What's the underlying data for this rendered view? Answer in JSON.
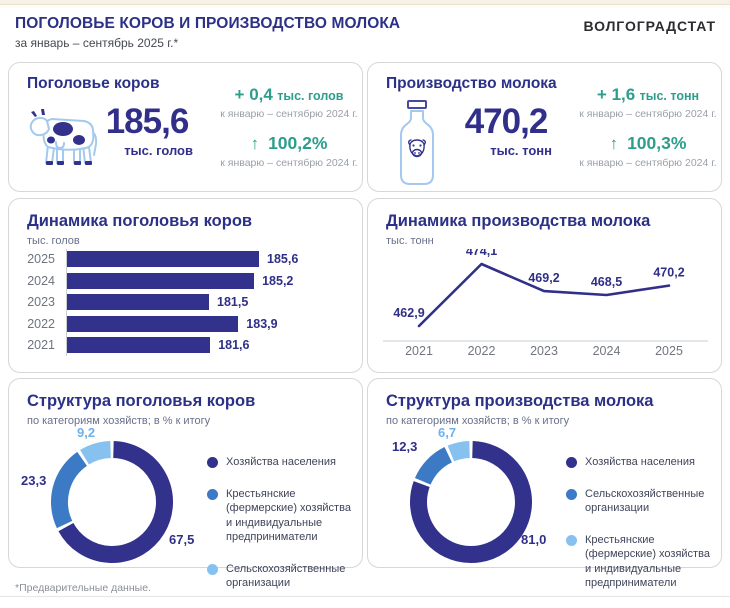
{
  "page": {
    "title": "ПОГОЛОВЬЕ КОРОВ И ПРОИЗВОДСТВО МОЛОКА",
    "subtitle": "за январь – сентябрь 2025 г.*",
    "brand": "ВОЛГОГРАДСТАТ",
    "footnote": "*Предварительные данные."
  },
  "colors": {
    "navy": "#32318c",
    "medium_blue": "#3c7ac5",
    "light_blue": "#86c1f0",
    "teal": "#2d9e8c",
    "caption_gray": "#9aa0a8"
  },
  "kpi_cards": [
    {
      "title": "Поголовье коров",
      "icon": "cow-icon",
      "value": "185,6",
      "unit": "тыс. голов",
      "delta_value": "+ 0,4",
      "delta_unit": "тыс. голов",
      "delta_caption": "к январю – сентябрю 2024 г.",
      "percent_arrow": "↑",
      "percent": "100,2%",
      "percent_caption": "к январю – сентябрю 2024 г."
    },
    {
      "title": "Производство молока",
      "icon": "milk-bottle-icon",
      "value": "470,2",
      "unit": "тыс. тонн",
      "delta_value": "+ 1,6",
      "delta_unit": "тыс. тонн",
      "delta_caption": "к январю – сентябрю 2024 г.",
      "percent_arrow": "↑",
      "percent": "100,3%",
      "percent_caption": "к январю – сентябрю 2024 г."
    }
  ],
  "chart_data": [
    {
      "type": "bar",
      "orientation": "horizontal",
      "title": "Динамика поголовья коров",
      "ylabel": "тыс. голов",
      "categories": [
        "2025",
        "2024",
        "2023",
        "2022",
        "2021"
      ],
      "values": [
        185.6,
        185.2,
        181.5,
        183.9,
        181.6
      ],
      "value_labels": [
        "185,6",
        "185,2",
        "181,5",
        "183,9",
        "181,6"
      ],
      "bar_color": "#32318c",
      "axis_truncated": true
    },
    {
      "type": "line",
      "title": "Динамика производства молока",
      "ylabel": "тыс. тонн",
      "x": [
        "2021",
        "2022",
        "2023",
        "2024",
        "2025"
      ],
      "values": [
        462.9,
        474.1,
        469.2,
        468.5,
        470.2
      ],
      "value_labels": [
        "462,9",
        "474,1",
        "469,2",
        "468,5",
        "470,2"
      ],
      "line_color": "#312f8a",
      "grid": false,
      "ylim": [
        460,
        476
      ]
    },
    {
      "type": "pie",
      "subtype": "donut",
      "title": "Структура поголовья коров",
      "subtitle": "по категориям хозяйств; в % к итогу",
      "segments": [
        {
          "label": "Хозяйства населения",
          "value": 67.5,
          "display": "67,5",
          "color": "#32318c",
          "label_color": "#2f2f87"
        },
        {
          "label": "Крестьянские (фермерские) хозяйства и индивидуальные предприниматели",
          "value": 23.3,
          "display": "23,3",
          "color": "#3c7ac5",
          "label_color": "#2f2f87"
        },
        {
          "label": "Сельскохозяйственные организации",
          "value": 9.2,
          "display": "9,2",
          "color": "#86c1f0",
          "label_color": "#6cb2ec"
        }
      ]
    },
    {
      "type": "pie",
      "subtype": "donut",
      "title": "Структура производства молока",
      "subtitle": "по категориям хозяйств; в % к итогу",
      "segments": [
        {
          "label": "Хозяйства населения",
          "value": 81.0,
          "display": "81,0",
          "color": "#32318c",
          "label_color": "#2f2f87"
        },
        {
          "label": "Сельскохозяйственные организации",
          "value": 12.3,
          "display": "12,3",
          "color": "#3c7ac5",
          "label_color": "#2f2f87"
        },
        {
          "label": "Крестьянские (фермерские) хозяйства и индивидуальные предприниматели",
          "value": 6.7,
          "display": "6,7",
          "color": "#86c1f0",
          "label_color": "#6cb2ec"
        }
      ]
    }
  ]
}
